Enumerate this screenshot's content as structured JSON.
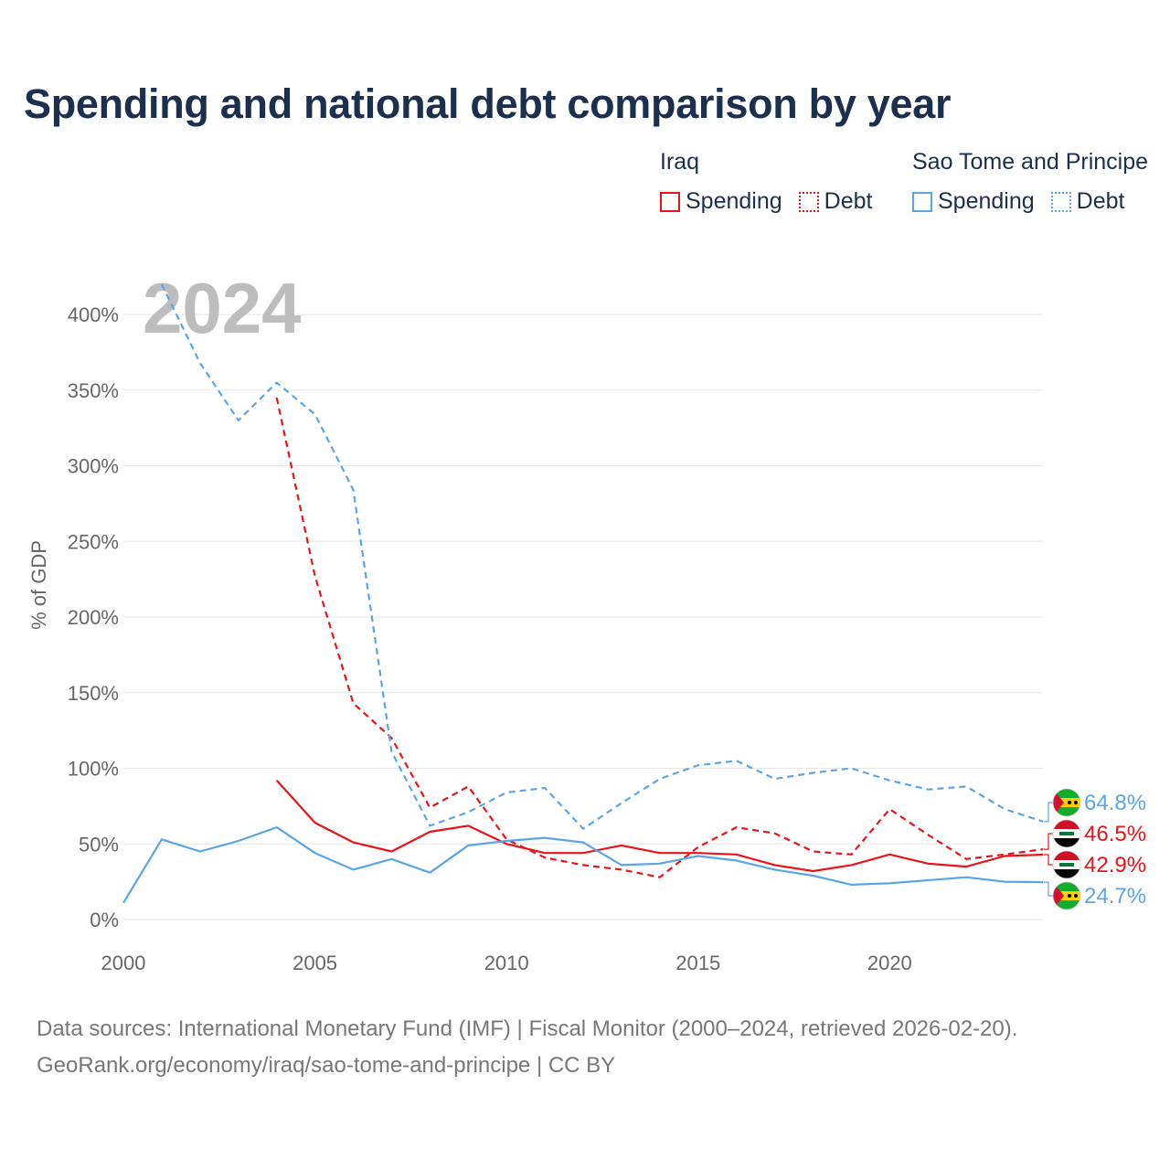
{
  "title": "Spending and national debt comparison by year",
  "legend": {
    "groups": [
      {
        "name": "Iraq",
        "color": "#e8141a",
        "items": [
          {
            "label": "Spending",
            "style": "solid"
          },
          {
            "label": "Debt",
            "style": "dotted"
          }
        ]
      },
      {
        "name": "Sao Tome and Principe",
        "color": "#5aa5e6",
        "items": [
          {
            "label": "Spending",
            "style": "solid"
          },
          {
            "label": "Debt",
            "style": "dotted"
          }
        ]
      }
    ]
  },
  "footer": {
    "line1": "Data sources: International Monetary Fund (IMF) | Fiscal Monitor (2000–2024, retrieved 2026-02-20).",
    "line2": "GeoRank.org/economy/iraq/sao-tome-and-principe | CC BY"
  },
  "chart_data": {
    "type": "line",
    "title": "Spending and national debt comparison by year",
    "xlabel": "",
    "ylabel": "% of GDP",
    "xlim": [
      2000,
      2024
    ],
    "ylim": [
      0,
      420
    ],
    "yticks": [
      0,
      50,
      100,
      150,
      200,
      250,
      300,
      350,
      400
    ],
    "ytick_labels": [
      "0%",
      "50%",
      "100%",
      "150%",
      "200%",
      "250%",
      "300%",
      "350%",
      "400%"
    ],
    "xticks": [
      2000,
      2005,
      2010,
      2015,
      2020
    ],
    "xtick_labels": [
      "2000",
      "2005",
      "2010",
      "2015",
      "2020"
    ],
    "year_label": "2024",
    "grid": true,
    "series": [
      {
        "name": "Iraq Spending",
        "color": "#e8141a",
        "dash": "solid",
        "x": [
          2004,
          2005,
          2006,
          2007,
          2008,
          2009,
          2010,
          2011,
          2012,
          2013,
          2014,
          2015,
          2016,
          2017,
          2018,
          2019,
          2020,
          2021,
          2022,
          2023,
          2024
        ],
        "values": [
          92,
          64,
          51,
          45,
          58,
          62,
          50,
          44,
          44,
          49,
          44,
          44,
          43,
          36,
          32,
          36,
          43,
          37,
          35,
          42,
          42.9
        ]
      },
      {
        "name": "Iraq Debt",
        "color": "#e8141a",
        "dash": "dashed",
        "x": [
          2004,
          2005,
          2006,
          2007,
          2008,
          2009,
          2010,
          2011,
          2012,
          2013,
          2014,
          2015,
          2016,
          2017,
          2018,
          2019,
          2020,
          2021,
          2022,
          2023,
          2024
        ],
        "values": [
          345,
          227,
          143,
          120,
          74,
          88,
          53,
          41,
          36,
          33,
          28,
          48,
          61,
          57,
          45,
          43,
          73,
          56,
          40,
          43,
          46.5
        ]
      },
      {
        "name": "Sao Tome and Principe Spending",
        "color": "#5aa5e6",
        "dash": "solid",
        "x": [
          2000,
          2001,
          2002,
          2003,
          2004,
          2005,
          2006,
          2007,
          2008,
          2009,
          2010,
          2011,
          2012,
          2013,
          2014,
          2015,
          2016,
          2017,
          2018,
          2019,
          2020,
          2021,
          2022,
          2023,
          2024
        ],
        "values": [
          11,
          53,
          45,
          52,
          61,
          44,
          33,
          40,
          31,
          49,
          52,
          54,
          51,
          36,
          37,
          42,
          39,
          33,
          29,
          23,
          24,
          26,
          28,
          25,
          24.7
        ]
      },
      {
        "name": "Sao Tome and Principe Debt",
        "color": "#5aa5e6",
        "dash": "dashed",
        "x": [
          2001,
          2002,
          2003,
          2004,
          2005,
          2006,
          2007,
          2008,
          2009,
          2010,
          2011,
          2012,
          2013,
          2014,
          2015,
          2016,
          2017,
          2018,
          2019,
          2020,
          2021,
          2022,
          2023,
          2024
        ],
        "values": [
          420,
          368,
          330,
          355,
          334,
          284,
          111,
          62,
          71,
          84,
          87,
          60,
          77,
          93,
          102,
          105,
          93,
          97,
          100,
          92,
          86,
          88,
          73,
          64.8
        ]
      }
    ],
    "end_labels": [
      {
        "text": "64.8%",
        "value": 64.8,
        "color": "#5aa5e6",
        "flag": "sao-tome-and-principe-flag"
      },
      {
        "text": "46.5%",
        "value": 46.5,
        "color": "#e8141a",
        "flag": "iraq-flag"
      },
      {
        "text": "42.9%",
        "value": 42.9,
        "color": "#e8141a",
        "flag": "iraq-flag"
      },
      {
        "text": "24.7%",
        "value": 24.7,
        "color": "#5aa5e6",
        "flag": "sao-tome-and-principe-flag"
      }
    ]
  }
}
